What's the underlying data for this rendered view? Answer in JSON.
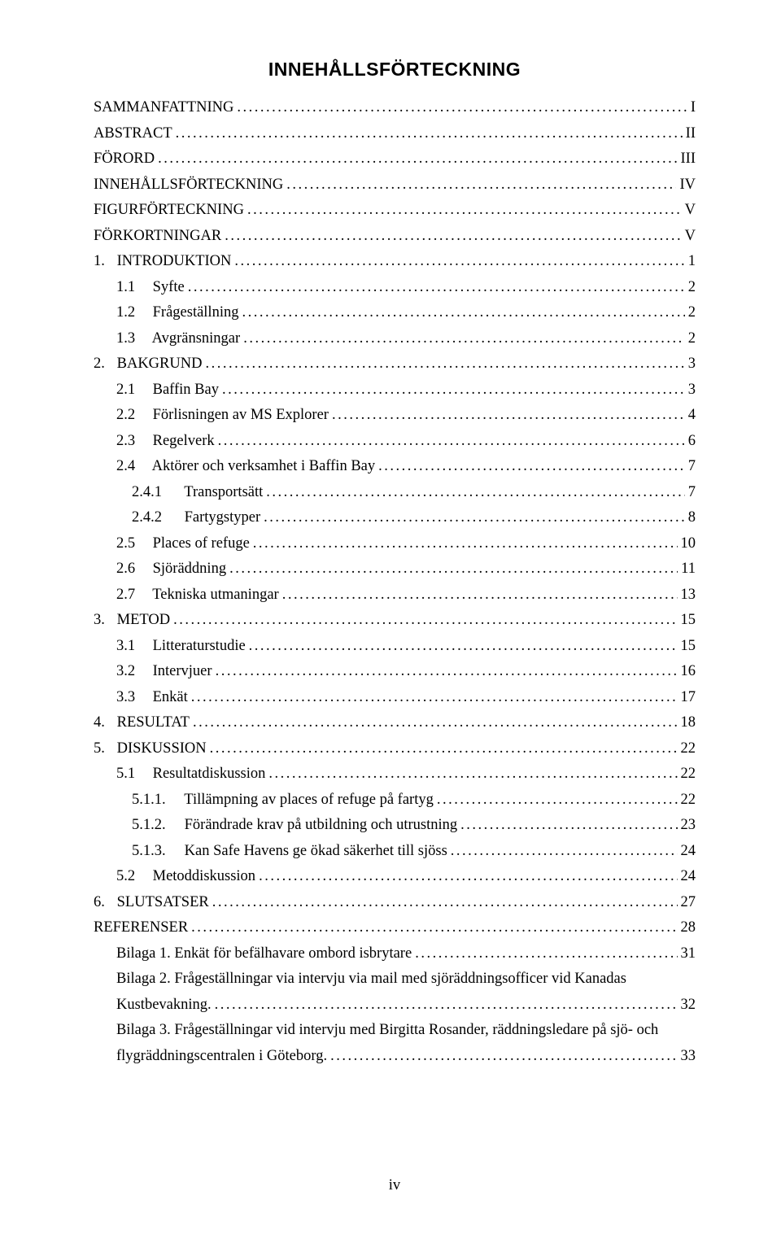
{
  "title": "INNEHÅLLSFÖRTECKNING",
  "page_number": "iv",
  "entries": [
    {
      "level": 0,
      "num": "",
      "text": "SAMMANFATTNING",
      "page": "I"
    },
    {
      "level": 0,
      "num": "",
      "text": "ABSTRACT",
      "page": "II"
    },
    {
      "level": 0,
      "num": "",
      "text": "FÖRORD",
      "page": "III"
    },
    {
      "level": 0,
      "num": "",
      "text": "INNEHÅLLSFÖRTECKNING",
      "page": "IV"
    },
    {
      "level": 0,
      "num": "",
      "text": "FIGURFÖRTECKNING",
      "page": "V"
    },
    {
      "level": 0,
      "num": "",
      "text": "FÖRKORTNINGAR",
      "page": "V"
    },
    {
      "level": 0,
      "num": "1.",
      "text": "INTRODUKTION",
      "page": "1"
    },
    {
      "level": 1,
      "num": "1.1",
      "text": "Syfte",
      "page": "2"
    },
    {
      "level": 1,
      "num": "1.2",
      "text": "Frågeställning",
      "page": "2"
    },
    {
      "level": 1,
      "num": "1.3",
      "text": "Avgränsningar",
      "page": "2"
    },
    {
      "level": 0,
      "num": "2.",
      "text": "BAKGRUND",
      "page": "3"
    },
    {
      "level": 1,
      "num": "2.1",
      "text": "Baffin Bay",
      "page": "3"
    },
    {
      "level": 1,
      "num": "2.2",
      "text": "Förlisningen av MS Explorer",
      "page": "4"
    },
    {
      "level": 1,
      "num": "2.3",
      "text": "Regelverk",
      "page": "6"
    },
    {
      "level": 1,
      "num": "2.4",
      "text": "Aktörer och verksamhet i Baffin Bay",
      "page": "7"
    },
    {
      "level": 2,
      "num": "2.4.1",
      "text": "Transportsätt",
      "page": "7"
    },
    {
      "level": 2,
      "num": "2.4.2",
      "text": "Fartygstyper",
      "page": "8"
    },
    {
      "level": 1,
      "num": "2.5",
      "text": "Places of refuge",
      "page": "10"
    },
    {
      "level": 1,
      "num": "2.6",
      "text": "Sjöräddning",
      "page": "11"
    },
    {
      "level": 1,
      "num": "2.7",
      "text": "Tekniska utmaningar",
      "page": "13"
    },
    {
      "level": 0,
      "num": "3.",
      "text": "METOD",
      "page": "15"
    },
    {
      "level": 1,
      "num": "3.1",
      "text": "Litteraturstudie",
      "page": "15"
    },
    {
      "level": 1,
      "num": "3.2",
      "text": "Intervjuer",
      "page": "16"
    },
    {
      "level": 1,
      "num": "3.3",
      "text": "Enkät",
      "page": "17"
    },
    {
      "level": 0,
      "num": "4.",
      "text": "RESULTAT",
      "page": "18"
    },
    {
      "level": 0,
      "num": "5.",
      "text": "DISKUSSION",
      "page": "22"
    },
    {
      "level": 1,
      "num": "5.1",
      "text": "Resultatdiskussion",
      "page": "22"
    },
    {
      "level": 2,
      "num": "5.1.1.",
      "text": "Tillämpning av places of refuge på fartyg",
      "page": "22"
    },
    {
      "level": 2,
      "num": "5.1.2.",
      "text": "Förändrade krav på utbildning och utrustning",
      "page": "23"
    },
    {
      "level": 2,
      "num": "5.1.3.",
      "text": "Kan Safe Havens ge ökad säkerhet till sjöss",
      "page": "24"
    },
    {
      "level": 1,
      "num": "5.2",
      "text": "Metoddiskussion",
      "page": "24"
    },
    {
      "level": 0,
      "num": "6.",
      "text": "SLUTSATSER",
      "page": "27"
    },
    {
      "level": 0,
      "num": "",
      "text": "REFERENSER",
      "page": "28"
    },
    {
      "level": 1,
      "num": "",
      "text": "Bilaga 1. Enkät för befälhavare ombord isbrytare",
      "page": "31"
    },
    {
      "level": 1,
      "num": "",
      "text": "Bilaga 2. Frågeställningar via intervju via mail med sjöräddningsofficer vid Kanadas",
      "cont": "Kustbevakning.",
      "page": "32"
    },
    {
      "level": 1,
      "num": "",
      "text": "Bilaga 3. Frågeställningar vid intervju med Birgitta Rosander, räddningsledare på sjö- och",
      "cont": "flygräddningscentralen i Göteborg.",
      "page": "33"
    }
  ]
}
